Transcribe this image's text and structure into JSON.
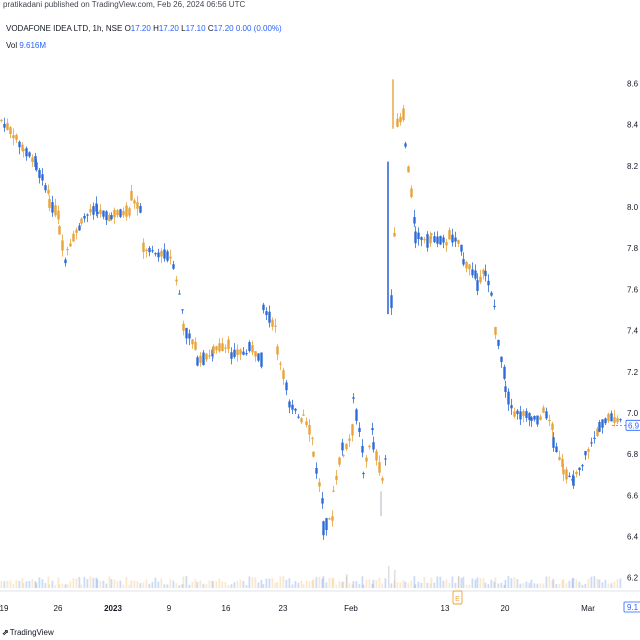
{
  "header": {
    "published_by": "pratikadani published on TradingView.com, Feb 26, 2024 06:56 UTC"
  },
  "legend": {
    "symbol": "VODAFONE IDEA LTD, 1h, NSE",
    "open_label": "O",
    "open": "17.20",
    "high_label": "H",
    "high": "17.20",
    "low_label": "L",
    "low": "17.10",
    "close_label": "C",
    "close": "17.20",
    "change": "0.00 (0.00%)",
    "vol_label": "Vol",
    "vol_value": "9.616M"
  },
  "branding": {
    "logo_text": "TradingView",
    "logo_icon": "tradingview-logo-icon"
  },
  "colors": {
    "up": "#e8a33a",
    "down": "#2f6bd8",
    "last_price": "#2962ff"
  },
  "chart_data": {
    "type": "candlestick",
    "y_axis_ticks": [
      "8.6",
      "8.4",
      "8.2",
      "8.0",
      "7.8",
      "7.6",
      "7.4",
      "7.2",
      "7.0",
      "6.8",
      "6.6",
      "6.4",
      "6.2"
    ],
    "y_axis_range": [
      6.15,
      8.67
    ],
    "x_axis_ticks": [
      {
        "label": "19",
        "bold": false
      },
      {
        "label": "26",
        "bold": false
      },
      {
        "label": "2023",
        "bold": true
      },
      {
        "label": "9",
        "bold": false
      },
      {
        "label": "16",
        "bold": false
      },
      {
        "label": "23",
        "bold": false
      },
      {
        "label": "Feb",
        "bold": false
      },
      {
        "label": "13",
        "bold": false
      },
      {
        "label": "20",
        "bold": false
      },
      {
        "label": "Mar",
        "bold": false
      }
    ],
    "last_price_tag": "6.9",
    "volume_tag": "9.1",
    "event_marker": "E",
    "segments": [
      [
        0,
        8.42,
        8.35
      ],
      [
        12,
        8.35,
        8.28
      ],
      [
        22,
        8.28,
        8.22
      ],
      [
        35,
        8.2,
        8.06
      ],
      [
        48,
        8.02,
        7.95
      ],
      [
        58,
        7.88,
        7.7
      ],
      [
        66,
        7.8,
        7.92
      ],
      [
        80,
        7.94,
        8.0
      ],
      [
        96,
        7.98,
        7.94
      ],
      [
        110,
        7.96,
        7.98
      ],
      [
        130,
        8.05,
        7.96
      ],
      [
        142,
        7.8,
        7.76
      ],
      [
        160,
        7.78,
        7.75
      ],
      [
        172,
        7.72,
        7.48
      ],
      [
        182,
        7.42,
        7.3
      ],
      [
        196,
        7.26,
        7.29
      ],
      [
        212,
        7.3,
        7.34
      ],
      [
        230,
        7.28,
        7.3
      ],
      [
        248,
        7.32,
        7.26
      ],
      [
        262,
        7.52,
        7.4
      ],
      [
        276,
        7.3,
        7.08
      ],
      [
        288,
        7.04,
        6.96
      ],
      [
        302,
        7.0,
        6.86
      ],
      [
        312,
        6.8,
        6.55
      ],
      [
        322,
        6.45,
        6.5
      ],
      [
        332,
        6.62,
        6.86
      ],
      [
        342,
        6.8,
        6.92
      ],
      [
        352,
        7.08,
        6.8
      ],
      [
        362,
        6.7,
        6.94
      ],
      [
        372,
        6.84,
        6.62
      ],
      [
        384,
        6.78,
        6.92
      ],
      [
        387,
        null,
        null
      ],
      [
        390,
        7.55,
        8.2
      ],
      [
        396,
        8.4,
        8.46
      ],
      [
        404,
        8.3,
        7.9
      ],
      [
        414,
        7.86,
        7.84
      ],
      [
        430,
        7.86,
        7.82
      ],
      [
        448,
        7.86,
        7.8
      ],
      [
        462,
        7.74,
        7.66
      ],
      [
        476,
        7.62,
        7.72
      ],
      [
        484,
        7.68,
        7.5
      ],
      [
        494,
        7.4,
        7.18
      ],
      [
        504,
        7.12,
        6.96
      ],
      [
        516,
        7.0,
        6.98
      ],
      [
        530,
        6.98,
        6.96
      ],
      [
        542,
        7.02,
        6.92
      ],
      [
        552,
        6.86,
        6.74
      ],
      [
        562,
        6.72,
        6.66
      ],
      [
        572,
        6.68,
        6.76
      ],
      [
        584,
        6.8,
        6.92
      ],
      [
        598,
        6.94,
        6.98
      ],
      [
        610,
        6.98,
        6.96
      ],
      [
        622,
        6.94,
        6.94
      ]
    ]
  }
}
